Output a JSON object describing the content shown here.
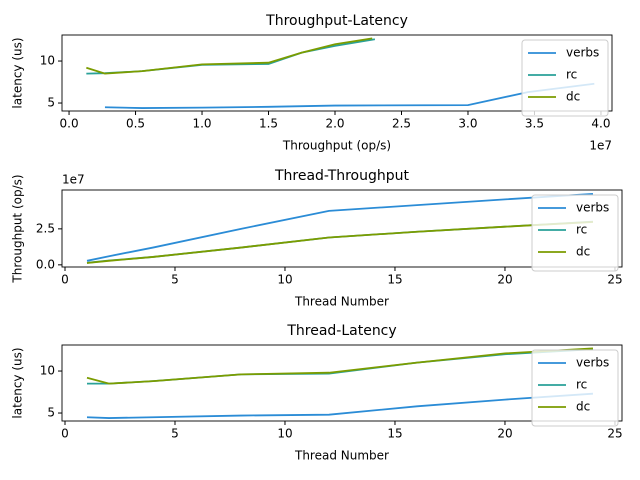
{
  "chart_data": [
    {
      "type": "line",
      "title": "Throughput-Latency",
      "xlabel": "Throughput (op/s)",
      "ylabel": "latency (us)",
      "x_offset_label": "1e7",
      "xlim": [
        -0.053,
        4.083
      ],
      "ylim": [
        4.05,
        13.1
      ],
      "xticks": [
        {
          "value": 0,
          "label": "0.0"
        },
        {
          "value": 0.5,
          "label": "0.5"
        },
        {
          "value": 1,
          "label": "1.0"
        },
        {
          "value": 1.5,
          "label": "1.5"
        },
        {
          "value": 2,
          "label": "2.0"
        },
        {
          "value": 2.5,
          "label": "2.5"
        },
        {
          "value": 3,
          "label": "3.0"
        },
        {
          "value": 3.5,
          "label": "3.5"
        },
        {
          "value": 4,
          "label": "4.0"
        }
      ],
      "yticks": [
        5,
        10
      ],
      "legend": "upper right",
      "series": [
        {
          "name": "verbs",
          "color": "#2b8cd6",
          "x": [
            0.27,
            0.55,
            1.0,
            1.5,
            2.0,
            3.0,
            3.45,
            3.95
          ],
          "values": [
            4.5,
            4.4,
            4.45,
            4.55,
            4.7,
            4.75,
            6.3,
            7.3
          ]
        },
        {
          "name": "rc",
          "color": "#2aa198",
          "x": [
            0.13,
            0.27,
            0.55,
            1.0,
            1.5,
            1.75,
            2.0,
            2.3
          ],
          "values": [
            8.5,
            8.55,
            8.8,
            9.55,
            9.65,
            11.0,
            11.8,
            12.6
          ]
        },
        {
          "name": "dc",
          "color": "#7b9c00",
          "x": [
            0.13,
            0.27,
            0.55,
            1.0,
            1.5,
            1.75,
            2.0,
            2.28
          ],
          "values": [
            9.2,
            8.5,
            8.8,
            9.6,
            9.8,
            11.0,
            12.0,
            12.7
          ]
        }
      ]
    },
    {
      "type": "line",
      "title": "Thread-Throughput",
      "xlabel": "Thread Number",
      "ylabel": "Throughput (op/s)",
      "y_offset_label": "1e7",
      "xlim": [
        -0.136,
        25.32
      ],
      "ylim": [
        -0.15,
        5.2
      ],
      "xticks": [
        0,
        5,
        10,
        15,
        20,
        25
      ],
      "yticks": [
        {
          "value": 0,
          "label": "0.0"
        },
        {
          "value": 2.5,
          "label": "2.5"
        }
      ],
      "legend": "upper right",
      "x": [
        1,
        2,
        4,
        8,
        12,
        16,
        20,
        24
      ],
      "series": [
        {
          "name": "verbs",
          "color": "#2b8cd6",
          "values": [
            0.28,
            0.6,
            1.2,
            2.5,
            3.75,
            4.15,
            4.55,
            4.93
          ]
        },
        {
          "name": "rc",
          "color": "#2aa198",
          "values": [
            0.14,
            0.3,
            0.55,
            1.2,
            1.9,
            2.3,
            2.65,
            3.0
          ]
        },
        {
          "name": "dc",
          "color": "#7b9c00",
          "values": [
            0.13,
            0.28,
            0.55,
            1.2,
            1.9,
            2.3,
            2.65,
            2.98
          ]
        }
      ]
    },
    {
      "type": "line",
      "title": "Thread-Latency",
      "xlabel": "Thread Number",
      "ylabel": "latency (us)",
      "xlim": [
        -0.136,
        25.32
      ],
      "ylim": [
        4.05,
        13.1
      ],
      "xticks": [
        0,
        5,
        10,
        15,
        20,
        25
      ],
      "yticks": [
        5,
        10
      ],
      "legend": "upper right",
      "x": [
        1,
        2,
        4,
        8,
        12,
        16,
        20,
        24
      ],
      "series": [
        {
          "name": "verbs",
          "color": "#2b8cd6",
          "values": [
            4.5,
            4.4,
            4.5,
            4.7,
            4.8,
            5.8,
            6.6,
            7.3
          ]
        },
        {
          "name": "rc",
          "color": "#2aa198",
          "values": [
            8.5,
            8.5,
            8.8,
            9.6,
            9.7,
            11.0,
            12.0,
            12.6
          ]
        },
        {
          "name": "dc",
          "color": "#7b9c00",
          "values": [
            9.2,
            8.5,
            8.8,
            9.6,
            9.8,
            11.0,
            12.1,
            12.7
          ]
        }
      ]
    }
  ]
}
